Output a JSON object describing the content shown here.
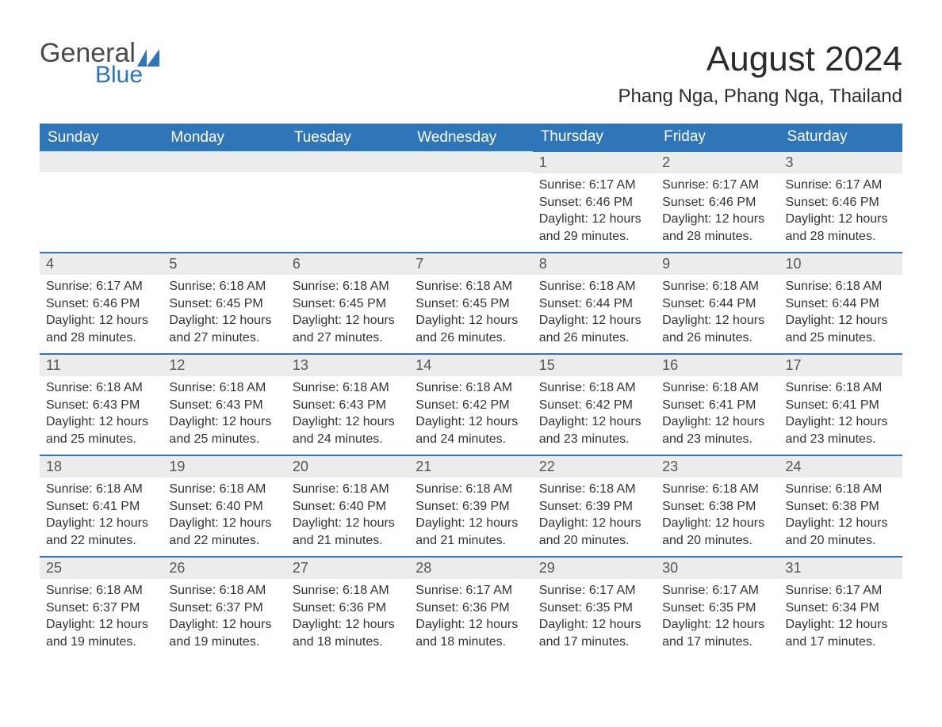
{
  "logo": {
    "general": "General",
    "blue": "Blue"
  },
  "title": "August 2024",
  "location": "Phang Nga, Phang Nga, Thailand",
  "colors": {
    "header_bg": "#2f76b8",
    "header_text": "#ffffff",
    "daynum_bg": "#ececec",
    "daynum_text": "#555555",
    "body_text": "#333333",
    "border": "#2f76b8",
    "page_bg": "#ffffff"
  },
  "typography": {
    "title_fontsize": 44,
    "location_fontsize": 24,
    "header_fontsize": 19,
    "daynum_fontsize": 18,
    "body_fontsize": 16
  },
  "weekdays": [
    "Sunday",
    "Monday",
    "Tuesday",
    "Wednesday",
    "Thursday",
    "Friday",
    "Saturday"
  ],
  "weeks": [
    [
      null,
      null,
      null,
      null,
      {
        "num": "1",
        "sunrise": "6:17 AM",
        "sunset": "6:46 PM",
        "daylight": "12 hours and 29 minutes."
      },
      {
        "num": "2",
        "sunrise": "6:17 AM",
        "sunset": "6:46 PM",
        "daylight": "12 hours and 28 minutes."
      },
      {
        "num": "3",
        "sunrise": "6:17 AM",
        "sunset": "6:46 PM",
        "daylight": "12 hours and 28 minutes."
      }
    ],
    [
      {
        "num": "4",
        "sunrise": "6:17 AM",
        "sunset": "6:46 PM",
        "daylight": "12 hours and 28 minutes."
      },
      {
        "num": "5",
        "sunrise": "6:18 AM",
        "sunset": "6:45 PM",
        "daylight": "12 hours and 27 minutes."
      },
      {
        "num": "6",
        "sunrise": "6:18 AM",
        "sunset": "6:45 PM",
        "daylight": "12 hours and 27 minutes."
      },
      {
        "num": "7",
        "sunrise": "6:18 AM",
        "sunset": "6:45 PM",
        "daylight": "12 hours and 26 minutes."
      },
      {
        "num": "8",
        "sunrise": "6:18 AM",
        "sunset": "6:44 PM",
        "daylight": "12 hours and 26 minutes."
      },
      {
        "num": "9",
        "sunrise": "6:18 AM",
        "sunset": "6:44 PM",
        "daylight": "12 hours and 26 minutes."
      },
      {
        "num": "10",
        "sunrise": "6:18 AM",
        "sunset": "6:44 PM",
        "daylight": "12 hours and 25 minutes."
      }
    ],
    [
      {
        "num": "11",
        "sunrise": "6:18 AM",
        "sunset": "6:43 PM",
        "daylight": "12 hours and 25 minutes."
      },
      {
        "num": "12",
        "sunrise": "6:18 AM",
        "sunset": "6:43 PM",
        "daylight": "12 hours and 25 minutes."
      },
      {
        "num": "13",
        "sunrise": "6:18 AM",
        "sunset": "6:43 PM",
        "daylight": "12 hours and 24 minutes."
      },
      {
        "num": "14",
        "sunrise": "6:18 AM",
        "sunset": "6:42 PM",
        "daylight": "12 hours and 24 minutes."
      },
      {
        "num": "15",
        "sunrise": "6:18 AM",
        "sunset": "6:42 PM",
        "daylight": "12 hours and 23 minutes."
      },
      {
        "num": "16",
        "sunrise": "6:18 AM",
        "sunset": "6:41 PM",
        "daylight": "12 hours and 23 minutes."
      },
      {
        "num": "17",
        "sunrise": "6:18 AM",
        "sunset": "6:41 PM",
        "daylight": "12 hours and 23 minutes."
      }
    ],
    [
      {
        "num": "18",
        "sunrise": "6:18 AM",
        "sunset": "6:41 PM",
        "daylight": "12 hours and 22 minutes."
      },
      {
        "num": "19",
        "sunrise": "6:18 AM",
        "sunset": "6:40 PM",
        "daylight": "12 hours and 22 minutes."
      },
      {
        "num": "20",
        "sunrise": "6:18 AM",
        "sunset": "6:40 PM",
        "daylight": "12 hours and 21 minutes."
      },
      {
        "num": "21",
        "sunrise": "6:18 AM",
        "sunset": "6:39 PM",
        "daylight": "12 hours and 21 minutes."
      },
      {
        "num": "22",
        "sunrise": "6:18 AM",
        "sunset": "6:39 PM",
        "daylight": "12 hours and 20 minutes."
      },
      {
        "num": "23",
        "sunrise": "6:18 AM",
        "sunset": "6:38 PM",
        "daylight": "12 hours and 20 minutes."
      },
      {
        "num": "24",
        "sunrise": "6:18 AM",
        "sunset": "6:38 PM",
        "daylight": "12 hours and 20 minutes."
      }
    ],
    [
      {
        "num": "25",
        "sunrise": "6:18 AM",
        "sunset": "6:37 PM",
        "daylight": "12 hours and 19 minutes."
      },
      {
        "num": "26",
        "sunrise": "6:18 AM",
        "sunset": "6:37 PM",
        "daylight": "12 hours and 19 minutes."
      },
      {
        "num": "27",
        "sunrise": "6:18 AM",
        "sunset": "6:36 PM",
        "daylight": "12 hours and 18 minutes."
      },
      {
        "num": "28",
        "sunrise": "6:17 AM",
        "sunset": "6:36 PM",
        "daylight": "12 hours and 18 minutes."
      },
      {
        "num": "29",
        "sunrise": "6:17 AM",
        "sunset": "6:35 PM",
        "daylight": "12 hours and 17 minutes."
      },
      {
        "num": "30",
        "sunrise": "6:17 AM",
        "sunset": "6:35 PM",
        "daylight": "12 hours and 17 minutes."
      },
      {
        "num": "31",
        "sunrise": "6:17 AM",
        "sunset": "6:34 PM",
        "daylight": "12 hours and 17 minutes."
      }
    ]
  ],
  "labels": {
    "sunrise": "Sunrise: ",
    "sunset": "Sunset: ",
    "daylight": "Daylight: "
  }
}
